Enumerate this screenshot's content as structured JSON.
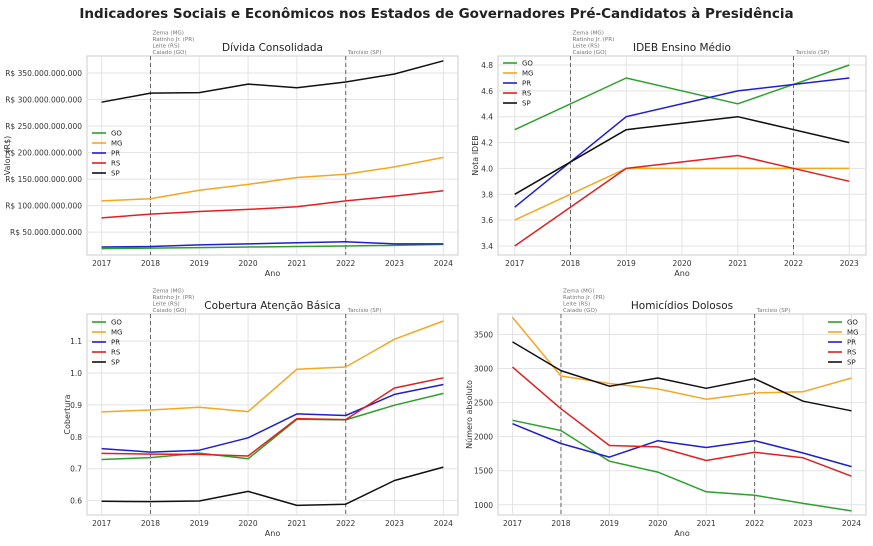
{
  "title": "Indicadores Sociais e Econômicos nos Estados de Governadores Pré-Candidatos à Presidência",
  "colors": {
    "GO": "#2ca02c",
    "MG": "#f5a623",
    "PR": "#1f1fcc",
    "RS": "#e02020",
    "SP": "#111111"
  },
  "chart_data": [
    {
      "type": "line",
      "title": "Dívida Consolidada",
      "xlabel": "Ano",
      "ylabel": "Valor (R$)",
      "x": [
        2017,
        2018,
        2019,
        2020,
        2021,
        2022,
        2023,
        2024
      ],
      "xticks": [
        "2017",
        "2018",
        "2019",
        "2020",
        "2021",
        "2022",
        "2023",
        "2024"
      ],
      "ylim": [
        7000000000,
        382000000000
      ],
      "yticks": [
        50000000000,
        100000000000,
        150000000000,
        200000000000,
        250000000000,
        300000000000,
        350000000000
      ],
      "ytick_labels": [
        "R$ 50.000.000.000",
        "R$ 100.000.000.000",
        "R$ 150.000.000.000",
        "R$ 200.000.000.000",
        "R$ 250.000.000.000",
        "R$ 300.000.000.000",
        "R$ 350.000.000.000"
      ],
      "grid": true,
      "legend": "center-left",
      "series": [
        {
          "name": "GO",
          "values": [
            19000000000,
            20000000000,
            21000000000,
            22000000000,
            23000000000,
            24000000000,
            25000000000,
            27000000000
          ]
        },
        {
          "name": "MG",
          "values": [
            109000000000,
            113000000000,
            129000000000,
            140000000000,
            153000000000,
            159000000000,
            173000000000,
            191000000000
          ]
        },
        {
          "name": "PR",
          "values": [
            22000000000,
            23000000000,
            26000000000,
            28000000000,
            30000000000,
            32000000000,
            28000000000,
            28000000000
          ]
        },
        {
          "name": "RS",
          "values": [
            77000000000,
            84000000000,
            89000000000,
            93000000000,
            98000000000,
            109000000000,
            118000000000,
            128000000000
          ]
        },
        {
          "name": "SP",
          "values": [
            295000000000,
            312000000000,
            313000000000,
            329000000000,
            322000000000,
            333000000000,
            348000000000,
            373000000000
          ]
        }
      ],
      "vlines": [
        {
          "x": 2018,
          "labels": [
            "Zema (MG)",
            "Ratinho Jr. (PR)",
            "Leite (RS)",
            "Caiado (GO)"
          ]
        },
        {
          "x": 2022,
          "labels": [
            "Tarcísio (SP)"
          ]
        }
      ]
    },
    {
      "type": "line",
      "title": "IDEB Ensino Médio",
      "xlabel": "Ano",
      "ylabel": "Nota IDEB",
      "x": [
        2017,
        2019,
        2021,
        2023
      ],
      "xticks": [
        "2017",
        "2018",
        "2019",
        "2020",
        "2021",
        "2022",
        "2023"
      ],
      "ylim": [
        3.33,
        4.87
      ],
      "yticks": [
        3.4,
        3.6,
        3.8,
        4.0,
        4.2,
        4.4,
        4.6,
        4.8
      ],
      "ytick_labels": [
        "3.4",
        "3.6",
        "3.8",
        "4.0",
        "4.2",
        "4.4",
        "4.6",
        "4.8"
      ],
      "grid": true,
      "legend": "top-left",
      "series": [
        {
          "name": "GO",
          "values": [
            4.3,
            4.7,
            4.5,
            4.8
          ]
        },
        {
          "name": "MG",
          "values": [
            3.6,
            4.0,
            4.0,
            4.0
          ]
        },
        {
          "name": "PR",
          "values": [
            3.7,
            4.4,
            4.6,
            4.7
          ]
        },
        {
          "name": "RS",
          "values": [
            3.4,
            4.0,
            4.1,
            3.9
          ]
        },
        {
          "name": "SP",
          "values": [
            3.8,
            4.3,
            4.4,
            4.2
          ]
        }
      ],
      "vlines": [
        {
          "x": 2018,
          "labels": [
            "Zema (MG)",
            "Ratinho Jr. (PR)",
            "Leite (RS)",
            "Caiado (GO)"
          ]
        },
        {
          "x": 2022,
          "labels": [
            "Tarcísio (SP)"
          ]
        }
      ]
    },
    {
      "type": "line",
      "title": "Cobertura Atenção Básica",
      "xlabel": "Ano",
      "ylabel": "Cobertura",
      "x": [
        2017,
        2018,
        2019,
        2020,
        2021,
        2022,
        2023,
        2024
      ],
      "xticks": [
        "2017",
        "2018",
        "2019",
        "2020",
        "2021",
        "2022",
        "2023",
        "2024"
      ],
      "ylim": [
        0.555,
        1.185
      ],
      "yticks": [
        0.6,
        0.7,
        0.8,
        0.9,
        1.0,
        1.1
      ],
      "ytick_labels": [
        "0.6",
        "0.7",
        "0.8",
        "0.9",
        "1.0",
        "1.1"
      ],
      "grid": true,
      "legend": "top-left",
      "series": [
        {
          "name": "GO",
          "values": [
            0.729,
            0.735,
            0.749,
            0.731,
            0.855,
            0.853,
            0.899,
            0.936
          ]
        },
        {
          "name": "MG",
          "values": [
            0.878,
            0.884,
            0.893,
            0.879,
            1.012,
            1.019,
            1.106,
            1.163
          ]
        },
        {
          "name": "PR",
          "values": [
            0.763,
            0.752,
            0.758,
            0.797,
            0.872,
            0.867,
            0.933,
            0.964
          ]
        },
        {
          "name": "RS",
          "values": [
            0.748,
            0.746,
            0.745,
            0.74,
            0.857,
            0.854,
            0.953,
            0.985
          ]
        },
        {
          "name": "SP",
          "values": [
            0.598,
            0.597,
            0.599,
            0.629,
            0.585,
            0.589,
            0.663,
            0.705
          ]
        }
      ],
      "vlines": [
        {
          "x": 2018,
          "labels": [
            "Zema (MG)",
            "Ratinho Jr. (PR)",
            "Leite (RS)",
            "Caiado (GO)"
          ]
        },
        {
          "x": 2022,
          "labels": [
            "Tarcísio (SP)"
          ]
        }
      ]
    },
    {
      "type": "line",
      "title": "Homicídios Dolosos",
      "xlabel": "Ano",
      "ylabel": "Número absoluto",
      "x": [
        2017,
        2018,
        2019,
        2020,
        2021,
        2022,
        2023,
        2024
      ],
      "xticks": [
        "2017",
        "2018",
        "2019",
        "2020",
        "2021",
        "2022",
        "2023",
        "2024"
      ],
      "ylim": [
        850,
        3800
      ],
      "yticks": [
        1000,
        1500,
        2000,
        2500,
        3000,
        3500
      ],
      "ytick_labels": [
        "1000",
        "1500",
        "2000",
        "2500",
        "3000",
        "3500"
      ],
      "grid": true,
      "legend": "top-right",
      "series": [
        {
          "name": "GO",
          "values": [
            2240,
            2090,
            1640,
            1480,
            1190,
            1140,
            1020,
            910
          ]
        },
        {
          "name": "MG",
          "values": [
            3750,
            2890,
            2780,
            2700,
            2550,
            2640,
            2660,
            2860
          ]
        },
        {
          "name": "PR",
          "values": [
            2190,
            1900,
            1700,
            1940,
            1840,
            1940,
            1760,
            1560
          ]
        },
        {
          "name": "RS",
          "values": [
            3020,
            2410,
            1870,
            1850,
            1650,
            1770,
            1690,
            1420
          ]
        },
        {
          "name": "SP",
          "values": [
            3390,
            2970,
            2740,
            2860,
            2710,
            2850,
            2520,
            2380
          ]
        }
      ],
      "vlines": [
        {
          "x": 2018,
          "labels": [
            "Zema (MG)",
            "Ratinho Jr. (PR)",
            "Leite (RS)",
            "Caiado (GO)"
          ]
        },
        {
          "x": 2022,
          "labels": [
            "Tarcísio (SP)"
          ]
        }
      ]
    }
  ]
}
